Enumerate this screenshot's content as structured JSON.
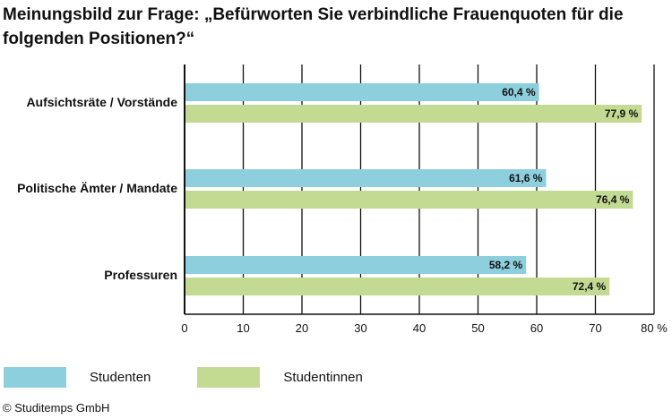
{
  "title": "Meinungsbild zur Frage: „Befürworten Sie verbindliche Frauenquoten für die folgenden Positionen?“",
  "copyright": "© Studitemps GmbH",
  "colors": {
    "studenten": "#8ecfdd",
    "studentinnen": "#c2da92",
    "grid": "#111111"
  },
  "chart_data": {
    "type": "bar",
    "orientation": "horizontal",
    "categories": [
      "Aufsichtsräte / Vorstände",
      "Politische Ämter / Mandate",
      "Professuren"
    ],
    "series": [
      {
        "name": "Studenten",
        "values": [
          60.4,
          61.6,
          58.2
        ],
        "labels": [
          "60,4 %",
          "61,6 %",
          "58,2 %"
        ]
      },
      {
        "name": "Studentinnen",
        "values": [
          77.9,
          76.4,
          72.4
        ],
        "labels": [
          "77,9 %",
          "76,4 %",
          "72,4 %"
        ]
      }
    ],
    "xlim": [
      0,
      80
    ],
    "xticks": [
      0,
      10,
      20,
      30,
      40,
      50,
      60,
      70,
      80
    ],
    "xtick_labels": [
      "0",
      "10",
      "20",
      "30",
      "40",
      "50",
      "60",
      "70",
      "80 %"
    ],
    "grid": true,
    "legend_position": "bottom-left"
  }
}
